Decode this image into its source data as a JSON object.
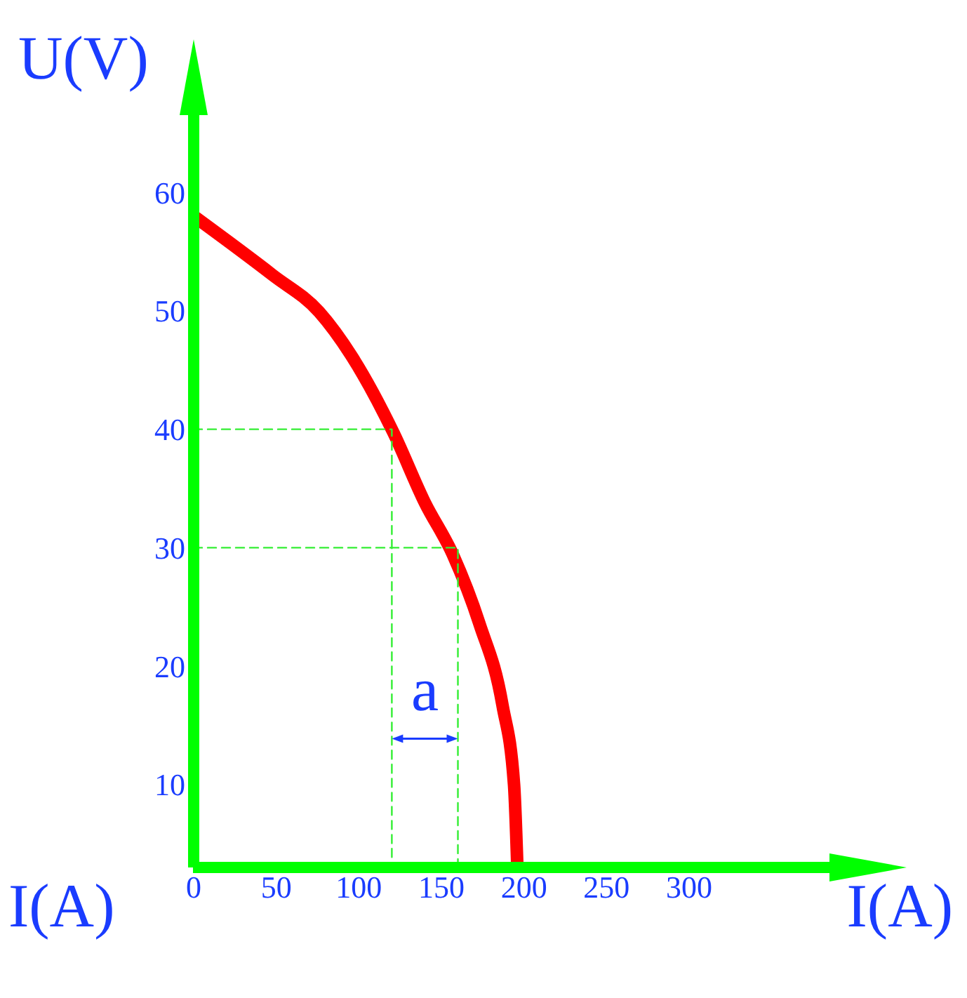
{
  "chart_data": {
    "type": "line",
    "xlabel": "I(A)",
    "ylabel": "U(V)",
    "xlim": [
      0,
      385
    ],
    "xticks": [
      0,
      50,
      100,
      150,
      200,
      250,
      300
    ],
    "ylim": [
      3,
      67
    ],
    "yticks": [
      10,
      20,
      30,
      40,
      50,
      60
    ],
    "marker": "none",
    "series": [
      {
        "color": "#ff0000",
        "x": [
          0,
          48,
          76,
          96,
          121,
          140,
          157,
          173,
          187,
          194,
          196
        ],
        "values": [
          58,
          53,
          49.9,
          46.1,
          39.7,
          33.8,
          29.4,
          23.6,
          16.7,
          10,
          3
        ]
      },
      {
        "color": "#33ee33",
        "line_style": "dashed",
        "x": [
          0,
          120,
          120
        ],
        "values": [
          40,
          40,
          3
        ]
      },
      {
        "color": "#33ee33",
        "line_style": "dashed",
        "x": [
          0,
          160,
          160
        ],
        "values": [
          30,
          30,
          3
        ]
      }
    ],
    "annotations": [
      "a",
      "I(A)"
    ]
  }
}
